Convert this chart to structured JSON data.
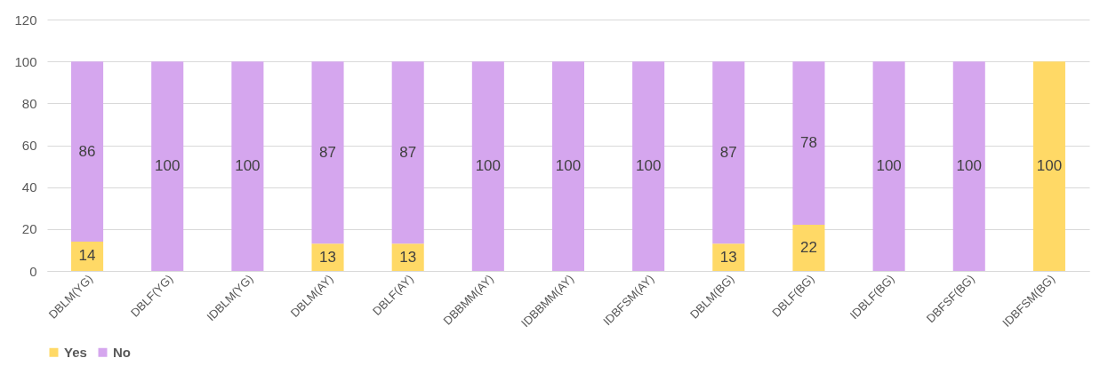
{
  "chart_data": {
    "type": "bar",
    "stacked": true,
    "categories": [
      "DBLM(YG)",
      "DBLF(YG)",
      "IDBLM(YG)",
      "DBLM(AY)",
      "DBLF(AY)",
      "DBBMM(AY)",
      "IDBBMM(AY)",
      "IDBFSM(AY)",
      "DBLM(BG)",
      "DBLF(BG)",
      "IDBLF(BG)",
      "DBFSF(BG)",
      "IDBFSM(BG)"
    ],
    "series": [
      {
        "name": "Yes",
        "color": "#ffd966",
        "values": [
          14,
          0,
          0,
          13,
          13,
          0,
          0,
          0,
          13,
          22,
          0,
          0,
          100
        ],
        "value_labels": [
          "14",
          null,
          null,
          "13",
          "13",
          null,
          null,
          null,
          "13",
          "22",
          null,
          null,
          "100"
        ]
      },
      {
        "name": "No",
        "color": "#d5a6ee",
        "values": [
          86,
          100,
          100,
          87,
          87,
          100,
          100,
          100,
          87,
          78,
          100,
          100,
          0
        ],
        "value_labels": [
          "86",
          "100",
          "100",
          "87",
          "87",
          "100",
          "100",
          "100",
          "87",
          "78",
          "100",
          "100",
          null
        ]
      }
    ],
    "ylim": [
      0,
      120
    ],
    "yticks": [
      0,
      20,
      40,
      60,
      80,
      100,
      120
    ],
    "grid": "y",
    "legend": "bottom"
  }
}
